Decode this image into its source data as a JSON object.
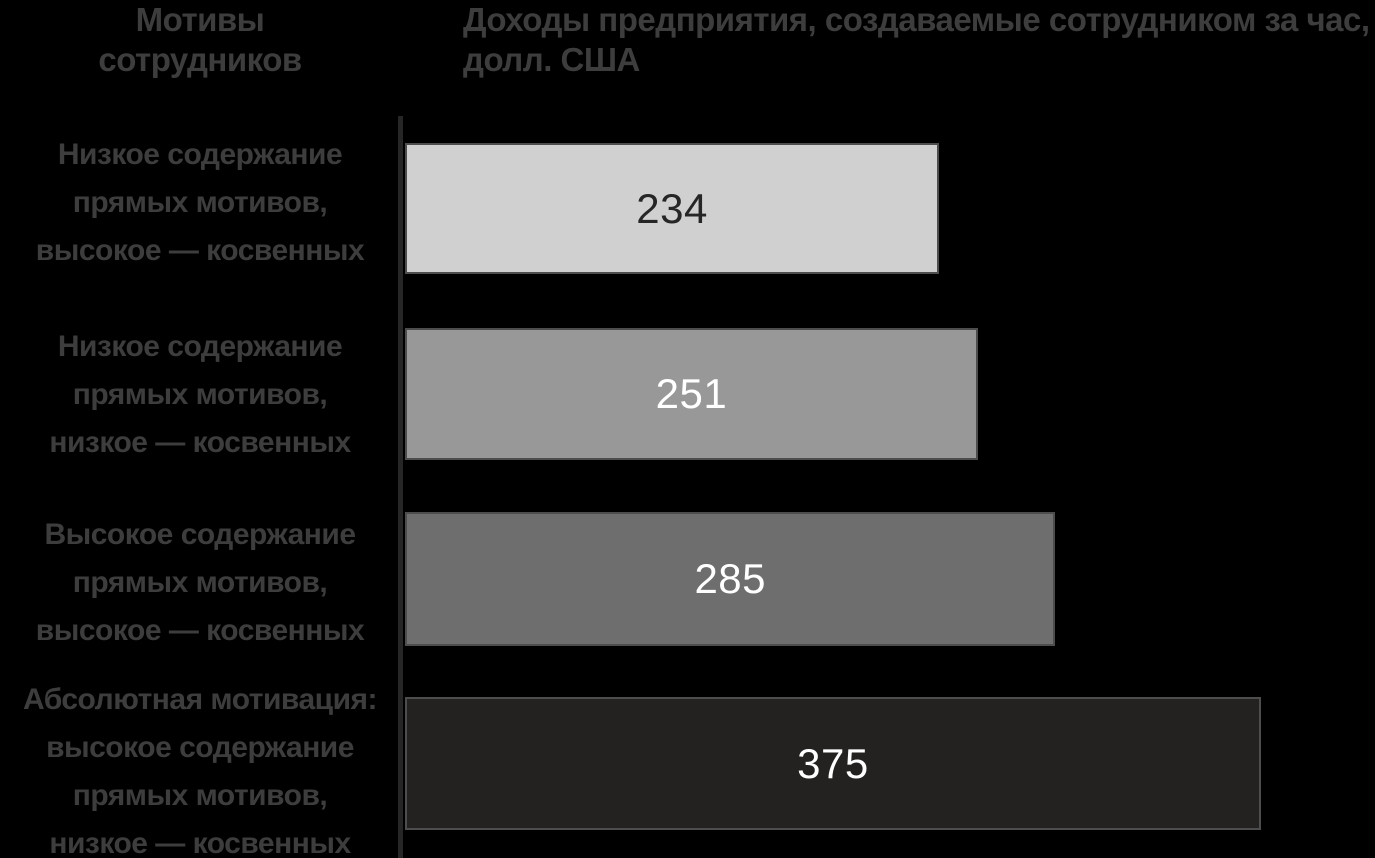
{
  "chart_data": {
    "type": "bar",
    "orientation": "horizontal",
    "title_col_categories": "Мотивы\nсотрудников",
    "title_col_values": "Доходы предприятия, создаваемые сотрудником за час,\nдолл. США",
    "xlim": [
      0,
      425
    ],
    "grid": false,
    "legend": false,
    "colors": {
      "background": "#000000",
      "heading_text": "#3d3d3d",
      "axis_line": "#262626",
      "bar_border": "#4d4d4d"
    },
    "rows": [
      {
        "label": "Низкое содержание\nпрямых мотивов,\nвысокое — косвенных",
        "value": 234,
        "bar_color": "#d0d0d0",
        "value_color": "#262626"
      },
      {
        "label": "Низкое содержание\nпрямых мотивов,\nнизкое — косвенных",
        "value": 251,
        "bar_color": "#989898",
        "value_color": "#ffffff"
      },
      {
        "label": "Высокое содержание\nпрямых мотивов,\nвысокое — косвенных",
        "value": 285,
        "bar_color": "#6e6e6e",
        "value_color": "#ffffff"
      },
      {
        "label": "Абсолютная мотивация:\nвысокое содержание\nпрямых мотивов,\nнизкое — косвенных",
        "value": 375,
        "bar_color": "#232221",
        "value_color": "#ffffff"
      }
    ]
  }
}
